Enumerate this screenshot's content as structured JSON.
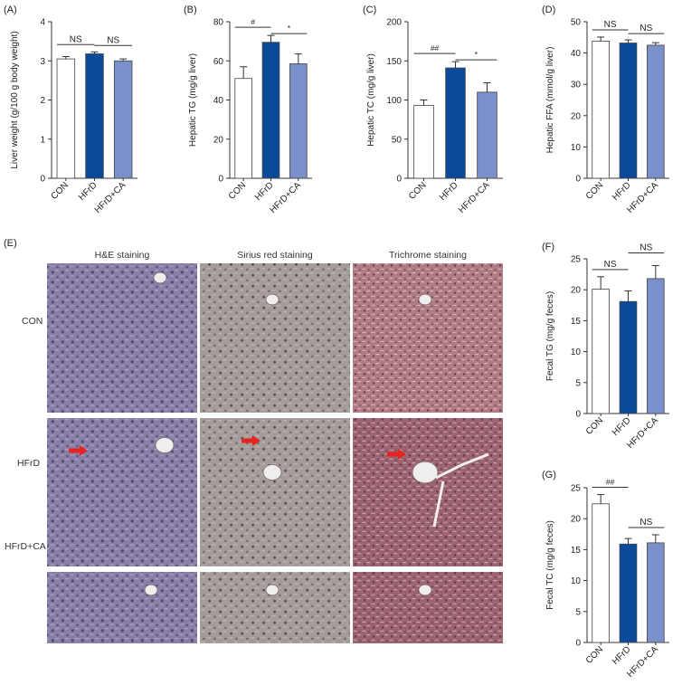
{
  "colors": {
    "CON": "#ffffff",
    "HFrD": "#0b4a99",
    "HFrD+CA": "#7b8fca",
    "bar_edge": "#444444",
    "axis": "#333333",
    "arrow": "#e52420",
    "he_tissue": "#8a7fa6",
    "sirius_tissue": "#a49b9b",
    "trichrome_tissue": "#9c6470",
    "trichrome_light": "#b07c83"
  },
  "chart_data": [
    {
      "id": "A",
      "type": "bar",
      "panel_label": "(A)",
      "categories": [
        "CON",
        "HFrD",
        "HFrD+CA"
      ],
      "values": [
        3.05,
        3.18,
        3.0
      ],
      "errors": [
        0.06,
        0.05,
        0.05
      ],
      "ylabel": "Liver weight (g/100 g body weight)",
      "xlabel": "",
      "ylim": [
        0,
        4
      ],
      "yticks": [
        "0",
        "1",
        "2",
        "3",
        "4"
      ],
      "annotations": [
        {
          "text": "NS",
          "from": 0,
          "to": 1
        },
        {
          "text": "NS",
          "from": 1,
          "to": 2
        }
      ]
    },
    {
      "id": "B",
      "type": "bar",
      "panel_label": "(B)",
      "categories": [
        "CON",
        "HFrD",
        "HFrD+CA"
      ],
      "values": [
        51,
        69.5,
        58.5
      ],
      "errors": [
        6,
        3.5,
        5
      ],
      "ylabel": "Hepatic TG (mg/g liver)",
      "xlabel": "",
      "ylim": [
        0,
        80
      ],
      "yticks": [
        "0",
        "20",
        "40",
        "60",
        "80"
      ],
      "annotations": [
        {
          "text": "#",
          "from": 0,
          "to": 1
        },
        {
          "text": "*",
          "from": 1,
          "to": 2
        }
      ]
    },
    {
      "id": "C",
      "type": "bar",
      "panel_label": "(C)",
      "categories": [
        "CON",
        "HFrD",
        "HFrD+CA"
      ],
      "values": [
        93,
        141,
        110
      ],
      "errors": [
        7,
        8,
        12
      ],
      "ylabel": "Hepatic TC (mg/g liver)",
      "xlabel": "",
      "ylim": [
        0,
        200
      ],
      "yticks": [
        "0",
        "50",
        "100",
        "150",
        "200"
      ],
      "annotations": [
        {
          "text": "##",
          "from": 0,
          "to": 1
        },
        {
          "text": "*",
          "from": 1,
          "to": 2
        }
      ]
    },
    {
      "id": "D",
      "type": "bar",
      "panel_label": "(D)",
      "categories": [
        "CON",
        "HFrD",
        "HFrD+CA"
      ],
      "values": [
        43.8,
        43.2,
        42.5
      ],
      "errors": [
        1.3,
        1.0,
        0.8
      ],
      "ylabel": "Hepatic FFA (mmol/g liver)",
      "xlabel": "",
      "ylim": [
        0,
        50
      ],
      "yticks": [
        "0",
        "10",
        "20",
        "30",
        "40",
        "50"
      ],
      "annotations": [
        {
          "text": "NS",
          "from": 0,
          "to": 1
        },
        {
          "text": "NS",
          "from": 1,
          "to": 2
        }
      ]
    },
    {
      "id": "F",
      "type": "bar",
      "panel_label": "(F)",
      "categories": [
        "CON",
        "HFrD",
        "HFrD+CA"
      ],
      "values": [
        20.1,
        18.1,
        21.8
      ],
      "errors": [
        2.0,
        1.7,
        2.1
      ],
      "ylabel": "Fecal TG (mg/g feces)",
      "xlabel": "",
      "ylim": [
        0,
        25
      ],
      "yticks": [
        "0",
        "5",
        "10",
        "15",
        "20",
        "25"
      ],
      "annotations": [
        {
          "text": "NS",
          "from": 0,
          "to": 1
        },
        {
          "text": "NS",
          "from": 1,
          "to": 2
        }
      ]
    },
    {
      "id": "G",
      "type": "bar",
      "panel_label": "(G)",
      "categories": [
        "CON",
        "HFrD",
        "HFrD+CA"
      ],
      "values": [
        22.4,
        15.9,
        16.1
      ],
      "errors": [
        1.5,
        0.9,
        1.3
      ],
      "ylabel": "Fecal TC (mg/g feces)",
      "xlabel": "",
      "ylim": [
        0,
        25
      ],
      "yticks": [
        "0",
        "5",
        "10",
        "15",
        "20",
        "25"
      ],
      "annotations": [
        {
          "text": "##",
          "from": 0,
          "to": 1
        },
        {
          "text": "NS",
          "from": 1,
          "to": 2
        }
      ]
    }
  ],
  "histology": {
    "panel_label": "(E)",
    "columns": [
      "H&E staining",
      "Sirius red staining",
      "Trichrome staining"
    ],
    "rows": [
      "CON",
      "HFrD",
      "HFrD+CA"
    ]
  }
}
